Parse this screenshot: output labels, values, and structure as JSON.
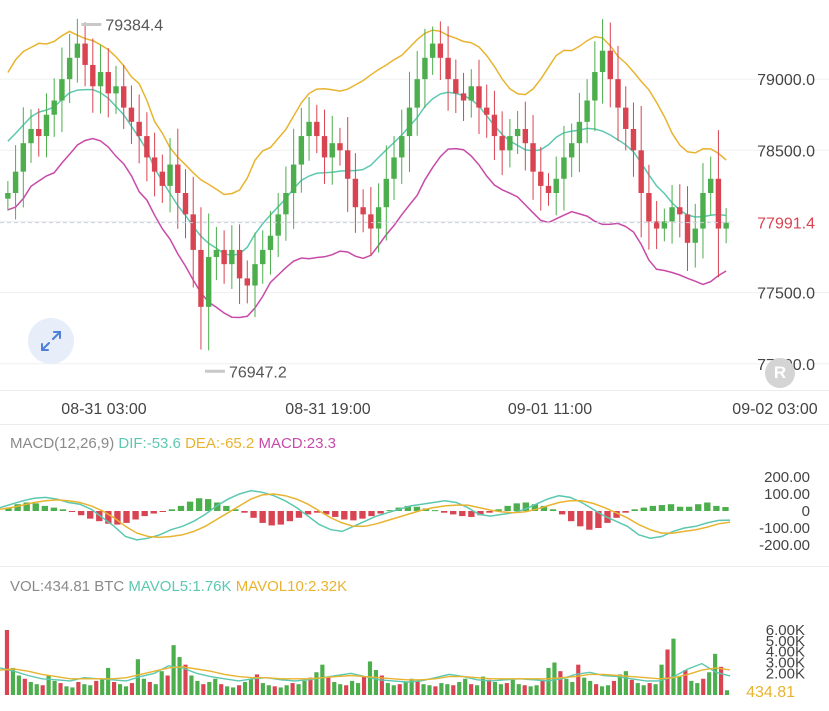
{
  "chart_data": [
    {
      "type": "candlestick",
      "x_tick_labels": [
        "08-31 03:00",
        "08-31 19:00",
        "09-01 11:00",
        "09-02 03:00"
      ],
      "y_tick_labels": [
        "79000.0",
        "78500.0",
        "78000.0",
        "77500.0",
        "77000.0"
      ],
      "ylim": [
        76900,
        79500
      ],
      "high_label": "79384.4",
      "low_label": "76947.2",
      "last_price": "77991.4",
      "overlays": [
        "MA",
        "upper band",
        "lower band"
      ],
      "colors": {
        "up": "#4cae4c",
        "down": "#d94452",
        "mid": "#5cc8b0",
        "upper": "#e8b430",
        "lower": "#c84aa8",
        "last": "#d94452"
      },
      "series": [
        {
          "values": [
            78200,
            78350,
            78550,
            78650,
            78600,
            78750,
            78850,
            79000,
            79150,
            79250,
            79100,
            78950,
            79050,
            78900,
            78950,
            78800,
            78700,
            78600,
            78450,
            78350,
            78250,
            78400,
            78200,
            78050,
            77800,
            77400,
            77750,
            77800,
            77700,
            77800,
            77600,
            77550,
            77700,
            77800,
            77900,
            78050,
            78200,
            78400,
            78600,
            78700,
            78600,
            78450,
            78550,
            78500,
            78300,
            78100,
            78050,
            77950,
            78100,
            78300,
            78450,
            78600,
            78800,
            79000,
            79150,
            79250,
            79150,
            79000,
            78900,
            78850,
            78950,
            78800,
            78750,
            78600,
            78500,
            78600,
            78650,
            78550,
            78350,
            78250,
            78200,
            78300,
            78450,
            78550,
            78700,
            78850,
            79050,
            79200,
            79000,
            78800,
            78650,
            78500,
            78200,
            78000,
            77950,
            78000,
            78100,
            78050,
            77850,
            77950,
            78200,
            78300,
            77950,
            77991.4
          ]
        }
      ]
    },
    {
      "type": "bar",
      "title": "MACD(12,26,9)",
      "indicators": [
        {
          "name": "DIF",
          "value": "-53.6"
        },
        {
          "name": "DEA",
          "value": "-65.2"
        },
        {
          "name": "MACD",
          "value": "23.3"
        }
      ],
      "y_tick_labels": [
        "200.00",
        "100.00",
        "0",
        "-100.00",
        "-200.00"
      ],
      "ylim": [
        -240,
        240
      ],
      "series": [
        {
          "name": "MACD",
          "values": [
            20,
            40,
            50,
            45,
            30,
            20,
            10,
            -5,
            -25,
            -45,
            -60,
            -75,
            -80,
            -70,
            -50,
            -30,
            -15,
            -5,
            10,
            30,
            55,
            75,
            70,
            50,
            30,
            10,
            -10,
            -40,
            -70,
            -85,
            -80,
            -60,
            -40,
            -20,
            -10,
            -20,
            -35,
            -50,
            -55,
            -45,
            -30,
            -15,
            5,
            20,
            30,
            25,
            15,
            5,
            -10,
            -20,
            -30,
            -35,
            -25,
            -10,
            10,
            30,
            45,
            50,
            40,
            30,
            10,
            -20,
            -60,
            -90,
            -110,
            -100,
            -70,
            -40,
            -10,
            10,
            20,
            30,
            35,
            40,
            25,
            25,
            40,
            50,
            30,
            23.3
          ]
        },
        {
          "name": "DIF",
          "values": [
            20,
            40,
            60,
            75,
            80,
            70,
            50,
            40,
            10,
            -40,
            -90,
            -150,
            -170,
            -160,
            -140,
            -110,
            -90,
            -60,
            -20,
            30,
            70,
            100,
            120,
            110,
            90,
            60,
            20,
            -30,
            -80,
            -110,
            -120,
            -90,
            -60,
            -30,
            -10,
            10,
            30,
            40,
            50,
            60,
            50,
            20,
            -20,
            -30,
            -20,
            -10,
            10,
            40,
            70,
            90,
            80,
            50,
            10,
            -30,
            -60,
            -90,
            -140,
            -160,
            -150,
            -120,
            -100,
            -90,
            -70,
            -55,
            -53.6
          ]
        },
        {
          "name": "DEA",
          "values": [
            10,
            20,
            35,
            50,
            60,
            65,
            60,
            50,
            30,
            0,
            -40,
            -90,
            -130,
            -150,
            -155,
            -150,
            -140,
            -120,
            -90,
            -50,
            -10,
            30,
            70,
            95,
            100,
            90,
            70,
            40,
            0,
            -40,
            -70,
            -90,
            -90,
            -75,
            -55,
            -35,
            -15,
            5,
            20,
            30,
            35,
            35,
            20,
            5,
            -5,
            -10,
            -5,
            10,
            30,
            50,
            60,
            60,
            45,
            20,
            -10,
            -40,
            -80,
            -110,
            -130,
            -130,
            -120,
            -110,
            -95,
            -75,
            -65.2
          ]
        }
      ]
    },
    {
      "type": "bar",
      "title": "VOL:434.81 BTC",
      "indicators": [
        {
          "name": "MAVOL5",
          "value": "1.76K"
        },
        {
          "name": "MAVOL10",
          "value": "2.32K"
        }
      ],
      "y_tick_labels": [
        "6.00K",
        "5.00K",
        "4.00K",
        "3.00K",
        "2.00K"
      ],
      "last_volume": "434.81",
      "ylim": [
        0,
        6500
      ],
      "series": [
        {
          "name": "VOL",
          "values": [
            6000,
            2500,
            1800,
            1500,
            1200,
            1000,
            900,
            1800,
            1300,
            1100,
            800,
            700,
            1200,
            1000,
            900,
            1300,
            1500,
            2500,
            1200,
            1000,
            800,
            1100,
            3300,
            1500,
            1200,
            1000,
            2200,
            1800,
            4600,
            3500,
            2800,
            1800,
            1300,
            1000,
            1200,
            1500,
            1000,
            800,
            700,
            900,
            1200,
            1500,
            1900,
            1100,
            900,
            800,
            700,
            900,
            1100,
            1000,
            1300,
            1600,
            2100,
            2800,
            1600,
            1200,
            1000,
            900,
            1300,
            1100,
            1700,
            3100,
            2300,
            1800,
            1100,
            900,
            1000,
            1200,
            1500,
            1300,
            1000,
            900,
            800,
            1100,
            1000,
            900,
            1200,
            1500,
            1000,
            900,
            1700,
            1400,
            1200,
            1000,
            1100,
            1400,
            1000,
            900,
            800,
            900,
            1400,
            2500,
            3000,
            2200,
            1500,
            1200,
            2800,
            1600,
            1300,
            1000,
            800,
            900,
            1300,
            1900,
            2200,
            1400,
            1100,
            900,
            1100,
            1000,
            2800,
            4200,
            5200,
            1700,
            2300,
            1300,
            1100,
            1500,
            2100,
            3800,
            2600,
            434.81
          ]
        },
        {
          "name": "MAVOL5",
          "values": [
            2500,
            2200,
            1800,
            1500,
            1400,
            1300,
            1600,
            1500,
            1400,
            1300,
            1700,
            2000,
            2700,
            2500,
            2000,
            1700,
            1500,
            1300,
            1500,
            1600,
            1400,
            1300,
            1400,
            1600,
            1800,
            2000,
            1700,
            1400,
            1300,
            1200,
            1300,
            1600,
            1900,
            1700,
            1400,
            1300,
            1400,
            1500,
            1400,
            1300,
            1500,
            1900,
            2100,
            1800,
            1700,
            1500,
            1300,
            1300,
            1700,
            2400,
            2900,
            2100,
            1760
          ]
        },
        {
          "name": "MAVOL10",
          "values": [
            2300,
            2400,
            2200,
            1900,
            1700,
            1500,
            1500,
            1500,
            1500,
            1600,
            1900,
            2200,
            2500,
            2600,
            2400,
            2200,
            1900,
            1700,
            1600,
            1600,
            1500,
            1500,
            1500,
            1600,
            1700,
            1800,
            1700,
            1600,
            1500,
            1400,
            1400,
            1500,
            1700,
            1700,
            1600,
            1500,
            1500,
            1500,
            1500,
            1500,
            1600,
            1700,
            1900,
            1900,
            1800,
            1700,
            1600,
            1500,
            1600,
            1900,
            2300,
            2500,
            2320
          ]
        }
      ]
    }
  ],
  "legend": {
    "macd_title": "MACD(12,26,9)",
    "dif": "DIF:-53.6",
    "dea": "DEA:-65.2",
    "macd": "MACD:23.3",
    "vol": "VOL:434.81 BTC",
    "mavol5": "MAVOL5:1.76K",
    "mavol10": "MAVOL10:2.32K"
  },
  "buttons": {
    "expand_icon": "expand-arrows-icon",
    "reset_label": "R"
  }
}
